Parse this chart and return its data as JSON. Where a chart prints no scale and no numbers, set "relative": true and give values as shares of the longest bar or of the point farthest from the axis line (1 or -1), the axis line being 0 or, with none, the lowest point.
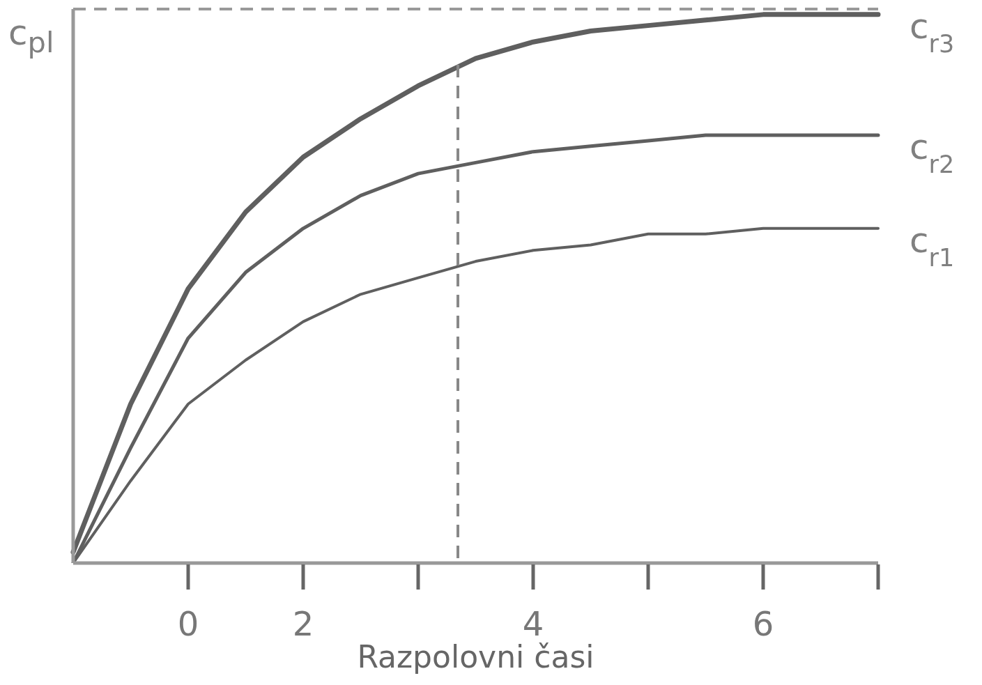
{
  "chart_data": {
    "type": "line",
    "xlabel": "Razpolovni časi",
    "ylabel": "c$_{pl}$",
    "relative": true,
    "grid": false,
    "legend": false,
    "marker": "none",
    "line_style": "solid",
    "categories": [
      null,
      null,
      "0",
      null,
      "2",
      null,
      null,
      null,
      "4",
      null,
      null,
      null,
      "6",
      null,
      null
    ],
    "series": [
      {
        "name": "c$_{r3}$",
        "color": "#5f5f5f",
        "values": [
          0.02,
          0.29,
          0.5,
          0.64,
          0.74,
          0.81,
          0.87,
          0.92,
          0.95,
          0.97,
          0.98,
          0.99,
          1.0,
          1.0,
          1.0
        ]
      },
      {
        "name": "c$_{r2}$",
        "color": "#5f5f5f",
        "values": [
          0,
          0.21,
          0.41,
          0.53,
          0.61,
          0.67,
          0.71,
          0.73,
          0.75,
          0.76,
          0.77,
          0.78,
          0.78,
          0.78,
          0.78
        ]
      },
      {
        "name": "c$_{r1}$",
        "color": "#5f5f5f",
        "values": [
          0,
          0.15,
          0.29,
          0.37,
          0.44,
          0.49,
          0.52,
          0.55,
          0.57,
          0.58,
          0.6,
          0.6,
          0.61,
          0.61,
          0.61
        ]
      }
    ],
    "ref_lines": [
      {
        "axis": "y",
        "value": 1.01,
        "color": "#999999",
        "line_style": "dashed"
      }
    ]
  }
}
